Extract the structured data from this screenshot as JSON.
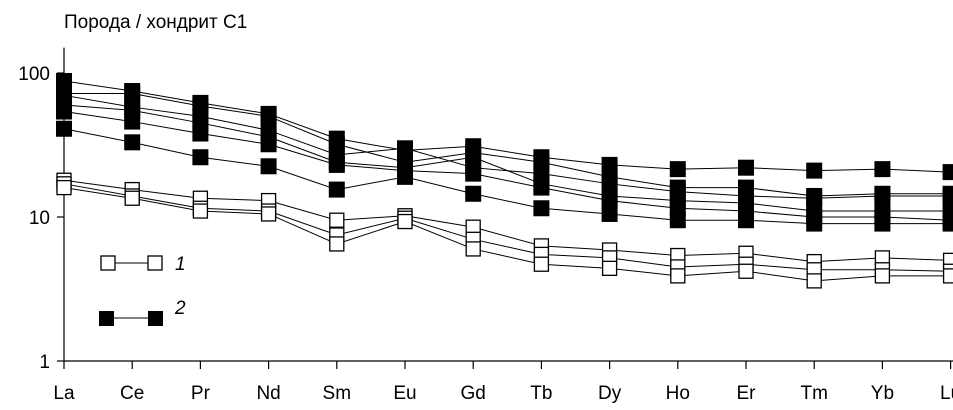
{
  "chart_data": {
    "type": "line",
    "ylabel": "Порода / хондрит С1",
    "yscale": "log",
    "ylim": [
      1,
      150
    ],
    "yticks": [
      {
        "value": 1,
        "label": "1"
      },
      {
        "value": 10,
        "label": "10"
      },
      {
        "value": 100,
        "label": "100"
      }
    ],
    "grid": false,
    "categories": [
      "La",
      "Ce",
      "Pr",
      "Nd",
      "Sm",
      "Eu",
      "Gd",
      "Tb",
      "Dy",
      "Ho",
      "Er",
      "Tm",
      "Yb",
      "Lu"
    ],
    "legend": [
      {
        "label": "1",
        "marker": "open-square"
      },
      {
        "label": "2",
        "marker": "filled-square"
      }
    ],
    "series": [
      {
        "group": "1",
        "marker": "open-square",
        "values": [
          18,
          15.5,
          13.5,
          13,
          9.5,
          10.2,
          8.5,
          6.3,
          5.9,
          5.4,
          5.6,
          4.9,
          5.2,
          5.0
        ]
      },
      {
        "group": "1",
        "marker": "open-square",
        "values": [
          17,
          14,
          11.5,
          11,
          7.5,
          9.8,
          7,
          5.5,
          5.2,
          4.5,
          4.7,
          4.3,
          4.3,
          4.2
        ]
      },
      {
        "group": "1",
        "marker": "open-square",
        "values": [
          16,
          13.5,
          11,
          10.5,
          6.5,
          9.3,
          6,
          4.7,
          4.4,
          3.9,
          4.2,
          3.6,
          3.9,
          3.9
        ]
      },
      {
        "group": "2",
        "marker": "filled-square",
        "values": [
          88,
          75,
          62,
          52,
          35,
          29,
          31,
          26,
          23,
          21.5,
          22,
          21,
          21.5,
          20.5
        ]
      },
      {
        "group": "2",
        "marker": "filled-square",
        "values": [
          72,
          72,
          59,
          50,
          32,
          24,
          28,
          24,
          19,
          16,
          16,
          14,
          14.5,
          14.5
        ]
      },
      {
        "group": "2",
        "marker": "filled-square",
        "values": [
          70,
          58,
          50,
          40,
          27,
          30,
          22,
          20,
          17,
          15,
          14,
          13.5,
          14,
          14
        ]
      },
      {
        "group": "2",
        "marker": "filled-square",
        "values": [
          60,
          55,
          45,
          36,
          24,
          22,
          26,
          17,
          14,
          13,
          12.5,
          11,
          11,
          11
        ]
      },
      {
        "group": "2",
        "marker": "filled-square",
        "values": [
          54,
          46,
          38,
          32,
          23,
          21,
          20,
          16,
          13,
          11.5,
          11,
          10,
          10,
          9.5
        ]
      },
      {
        "group": "2",
        "marker": "filled-square",
        "values": [
          41,
          33,
          26,
          22.5,
          15.5,
          19,
          14.5,
          11.5,
          10.5,
          9.5,
          9.5,
          9,
          9,
          9
        ]
      }
    ]
  }
}
